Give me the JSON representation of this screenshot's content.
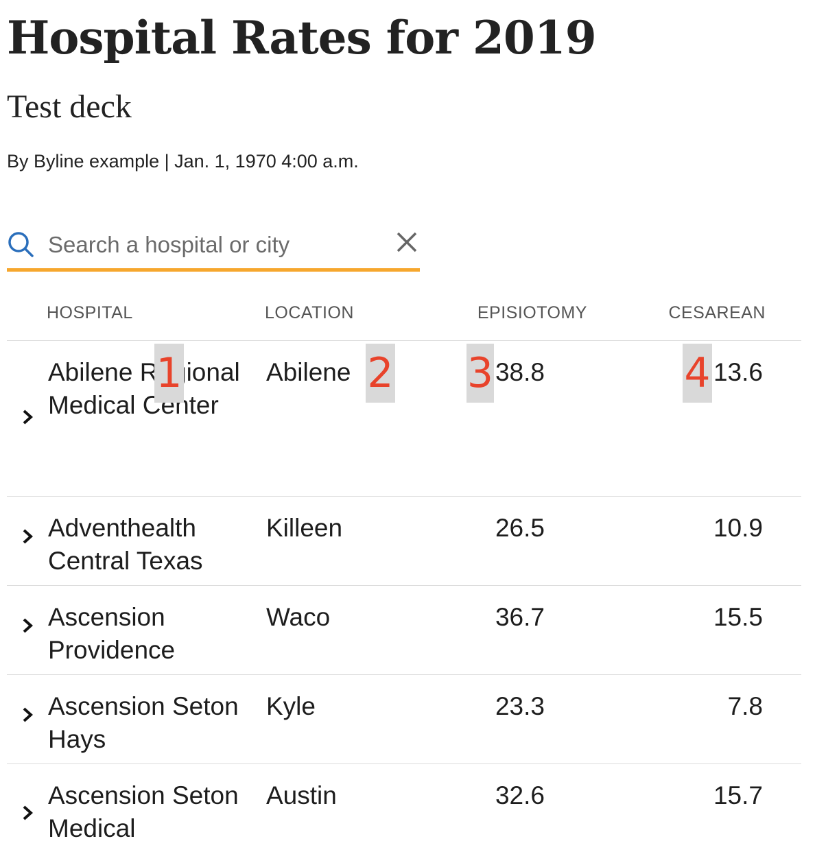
{
  "page": {
    "headline": "Hospital Rates for 2019",
    "deck": "Test deck",
    "byline": "By Byline example | Jan. 1, 1970 4:00 a.m."
  },
  "search": {
    "placeholder": "Search a hospital or city",
    "value": "",
    "icon": "search-icon",
    "clear_icon": "close-icon",
    "underline_color": "#f6a72d",
    "icon_color": "#2a6ebb"
  },
  "table": {
    "columns": [
      "HOSPITAL",
      "LOCATION",
      "EPISIOTOMY",
      "CESAREAN"
    ],
    "rows": [
      {
        "hospital": "Abilene Regional Medical Center",
        "location": "Abilene",
        "episiotomy": "38.8",
        "cesarean": "13.6"
      },
      {
        "hospital": "Adventhealth Central Texas",
        "location": "Killeen",
        "episiotomy": "26.5",
        "cesarean": "10.9"
      },
      {
        "hospital": "Ascension Providence",
        "location": "Waco",
        "episiotomy": "36.7",
        "cesarean": "15.5"
      },
      {
        "hospital": "Ascension Seton Hays",
        "location": "Kyle",
        "episiotomy": "23.3",
        "cesarean": "7.8"
      },
      {
        "hospital": "Ascension Seton Medical",
        "location": "Austin",
        "episiotomy": "32.6",
        "cesarean": "15.7"
      }
    ]
  },
  "markers": [
    "1",
    "2",
    "3",
    "4"
  ],
  "colors": {
    "marker_text": "#e8432b",
    "marker_bg": "#d9d9d9",
    "divider": "#dcdcdc"
  }
}
